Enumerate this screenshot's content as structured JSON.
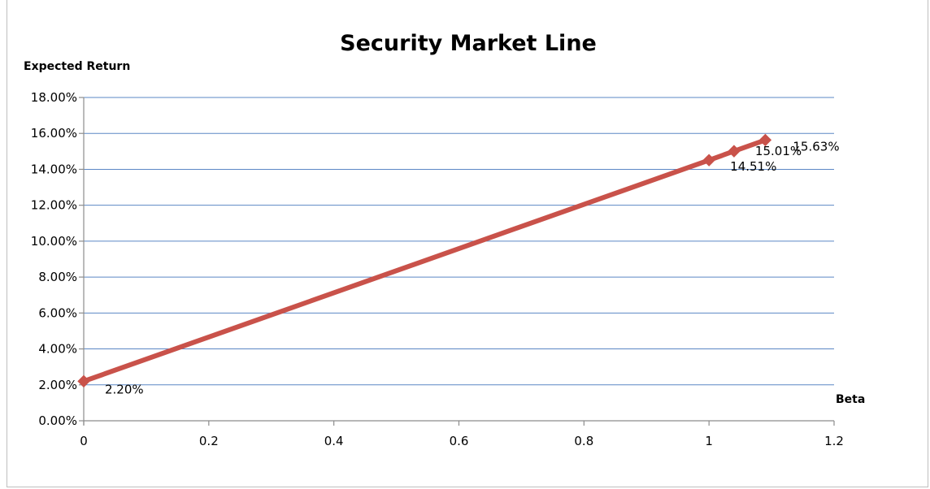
{
  "chart_data": {
    "type": "line",
    "title": "Security Market Line",
    "xlabel": "Beta",
    "ylabel": "Expected Return",
    "xlim": [
      0,
      1.2
    ],
    "ylim": [
      0,
      0.18
    ],
    "x_ticks": [
      0,
      0.2,
      0.4,
      0.6,
      0.8,
      1,
      1.2
    ],
    "x_tick_labels": [
      "0",
      "0.2",
      "0.4",
      "0.6",
      "0.8",
      "1",
      "1.2"
    ],
    "y_ticks": [
      0,
      0.02,
      0.04,
      0.06,
      0.08,
      0.1,
      0.12,
      0.14,
      0.16,
      0.18
    ],
    "y_tick_labels": [
      "0.00%",
      "2.00%",
      "4.00%",
      "6.00%",
      "8.00%",
      "10.00%",
      "12.00%",
      "14.00%",
      "16.00%",
      "18.00%"
    ],
    "grid": true,
    "legend": "none",
    "series": [
      {
        "color": "#c9524a",
        "marker": "diamond",
        "points": [
          {
            "x": 0,
            "y": 0.022,
            "label": "2.20%"
          },
          {
            "x": 1.0,
            "y": 0.1451,
            "label": "14.51%"
          },
          {
            "x": 1.04,
            "y": 0.1501,
            "label": "15.01%"
          },
          {
            "x": 1.09,
            "y": 0.1563,
            "label": "15.63%"
          }
        ]
      }
    ]
  }
}
